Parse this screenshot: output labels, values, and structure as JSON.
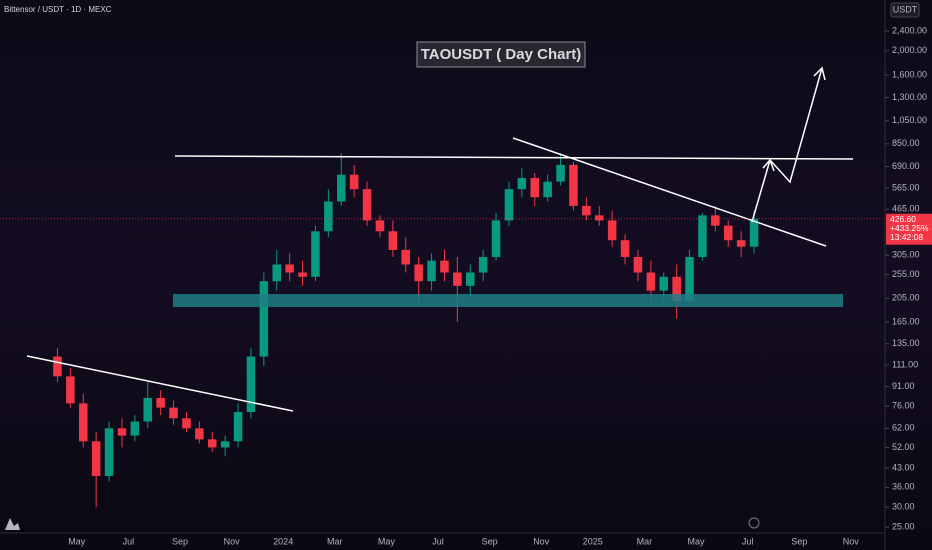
{
  "header": "Bittensor / USDT · 1D · MEXC",
  "currency": "USDT",
  "chart_data": {
    "type": "candlestick",
    "title": "TAOUSDT ( Day Chart)",
    "log_scale": true,
    "up_color": "#089981",
    "down_color": "#f23645",
    "categories": [
      null,
      null,
      "May",
      null,
      null,
      null,
      "Jul",
      null,
      null,
      null,
      "Sep",
      null,
      null,
      null,
      "Nov",
      null,
      null,
      null,
      "2024",
      null,
      null,
      null,
      "Mar",
      null,
      null,
      null,
      "May",
      null,
      null,
      null,
      "Jul",
      null,
      null,
      null,
      "Sep",
      null,
      null,
      null,
      "Nov",
      null,
      null,
      null,
      "2025",
      null,
      null,
      null,
      "Mar",
      null,
      null,
      null,
      "May",
      null,
      null,
      null,
      "Jul",
      null,
      null,
      null,
      "Sep",
      null,
      null,
      null,
      "Nov",
      null
    ],
    "open": [
      120,
      100,
      78,
      55,
      40,
      62,
      58,
      66,
      82,
      75,
      68,
      62,
      56,
      52,
      55,
      72,
      120,
      240,
      280,
      260,
      250,
      380,
      500,
      640,
      560,
      420,
      380,
      320,
      280,
      240,
      290,
      260,
      230,
      260,
      300,
      420,
      560,
      620,
      520,
      600,
      700,
      480,
      440,
      420,
      350,
      300,
      260,
      220,
      250,
      200,
      300,
      440,
      400,
      350,
      330,
      null,
      null,
      null,
      null,
      null,
      null,
      null,
      null,
      null
    ],
    "high": [
      130,
      108,
      85,
      60,
      66,
      68,
      70,
      95,
      88,
      80,
      72,
      66,
      60,
      58,
      78,
      130,
      260,
      320,
      310,
      290,
      400,
      560,
      780,
      700,
      600,
      440,
      420,
      360,
      300,
      310,
      320,
      300,
      280,
      320,
      450,
      600,
      680,
      650,
      640,
      780,
      720,
      520,
      480,
      460,
      370,
      320,
      290,
      260,
      280,
      320,
      450,
      480,
      420,
      380,
      460,
      null,
      null,
      null,
      null,
      null,
      null,
      null,
      null,
      null
    ],
    "low": [
      95,
      75,
      52,
      30,
      38,
      52,
      55,
      62,
      70,
      64,
      60,
      54,
      50,
      48,
      52,
      68,
      110,
      220,
      240,
      230,
      240,
      360,
      480,
      520,
      400,
      360,
      300,
      260,
      200,
      220,
      240,
      165,
      210,
      240,
      290,
      400,
      520,
      480,
      500,
      580,
      460,
      420,
      400,
      330,
      280,
      240,
      200,
      200,
      170,
      190,
      290,
      380,
      330,
      300,
      310,
      null,
      null,
      null,
      null,
      null,
      null,
      null,
      null,
      null
    ],
    "close": [
      100,
      78,
      55,
      40,
      62,
      58,
      66,
      82,
      75,
      68,
      62,
      56,
      52,
      55,
      72,
      120,
      240,
      280,
      260,
      250,
      380,
      500,
      640,
      560,
      420,
      380,
      320,
      280,
      240,
      290,
      260,
      230,
      260,
      300,
      420,
      560,
      620,
      520,
      600,
      700,
      480,
      440,
      420,
      350,
      300,
      260,
      220,
      250,
      200,
      300,
      440,
      400,
      350,
      330,
      426.6,
      null,
      null,
      null,
      null,
      null,
      null,
      null,
      null,
      null
    ],
    "ylim": [
      25,
      2400
    ],
    "yticks": [
      {
        "value": 2400,
        "label": "2,400.00"
      },
      {
        "value": 2000,
        "label": "2,000.00"
      },
      {
        "value": 1600,
        "label": "1,600.00"
      },
      {
        "value": 1300,
        "label": "1,300.00"
      },
      {
        "value": 1050,
        "label": "1,050.00"
      },
      {
        "value": 850,
        "label": "850.00"
      },
      {
        "value": 690,
        "label": "690.00"
      },
      {
        "value": 565,
        "label": "565.00"
      },
      {
        "value": 465,
        "label": "465.00"
      },
      {
        "value": 305,
        "label": "305.00"
      },
      {
        "value": 255,
        "label": "255.00"
      },
      {
        "value": 205,
        "label": "205.00"
      },
      {
        "value": 165,
        "label": "165.00"
      },
      {
        "value": 135,
        "label": "135.00"
      },
      {
        "value": 111,
        "label": "111.00"
      },
      {
        "value": 91,
        "label": "91.00"
      },
      {
        "value": 76,
        "label": "76.00"
      },
      {
        "value": 62,
        "label": "62.00"
      },
      {
        "value": 52,
        "label": "52.00"
      },
      {
        "value": 43,
        "label": "43.00"
      },
      {
        "value": 36,
        "label": "36.00"
      },
      {
        "value": 30,
        "label": "30.00"
      },
      {
        "value": 25,
        "label": "25.00"
      }
    ],
    "last_price": {
      "value": 426.6,
      "label": "426.60"
    },
    "change_label": "+433.25%",
    "countdown": "13:42:08"
  }
}
